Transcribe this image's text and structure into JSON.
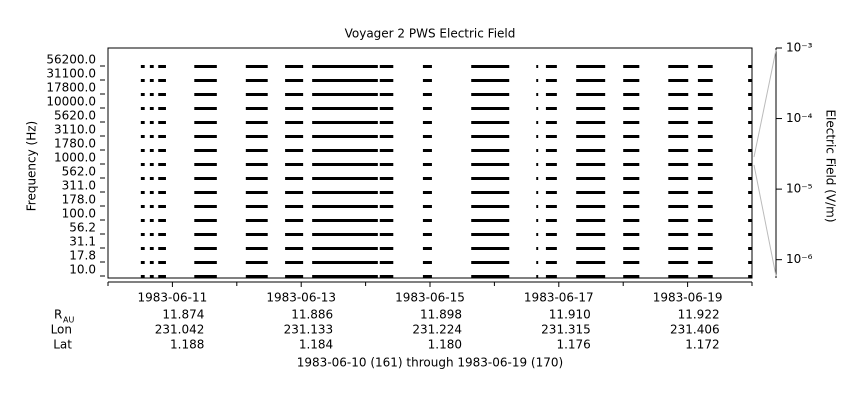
{
  "chart_data": {
    "type": "strip",
    "title": "Voyager 2 PWS Electric Field",
    "y_label": "Frequency (Hz)",
    "y2_label": "Electric Field (V/m)",
    "footer": "1983-06-10 (161) through 1983-06-19 (170)",
    "channels": [
      "56200.0",
      "31100.0",
      "17800.0",
      "10000.0",
      "5620.0",
      "3110.0",
      "1780.0",
      "1000.0",
      "562.0",
      "311.0",
      "178.0",
      "100.0",
      "56.2",
      "31.1",
      "17.8",
      "10.0"
    ],
    "color": "#000000",
    "xlim": [
      0,
      10
    ],
    "xticks": [
      {
        "value": 1,
        "label": "1983-06-11"
      },
      {
        "value": 3,
        "label": "1983-06-13"
      },
      {
        "value": 5,
        "label": "1983-06-15"
      },
      {
        "value": 7,
        "label": "1983-06-17"
      },
      {
        "value": 9,
        "label": "1983-06-19"
      }
    ],
    "xminor_ticks": [
      0,
      2,
      4,
      6,
      8,
      10
    ],
    "coverage": [
      [
        0.51,
        0.57
      ],
      [
        0.65,
        0.71
      ],
      [
        0.78,
        0.9
      ],
      [
        1.34,
        1.69
      ],
      [
        2.14,
        2.48
      ],
      [
        2.75,
        3.03
      ],
      [
        3.17,
        4.19
      ],
      [
        4.22,
        4.43
      ],
      [
        4.89,
        5.03
      ],
      [
        5.64,
        6.23
      ],
      [
        6.65,
        6.68
      ],
      [
        6.8,
        6.97
      ],
      [
        7.27,
        7.72
      ],
      [
        8.0,
        8.25
      ],
      [
        8.7,
        9.01
      ],
      [
        9.16,
        9.39
      ],
      [
        9.94,
        10.0
      ]
    ],
    "y2lim": [
      5.5e-07,
      0.001
    ],
    "y2_log": true,
    "y2ticks": [
      {
        "value": 0.001,
        "label": "10⁻³"
      },
      {
        "value": 0.0001,
        "label": "10⁻⁴"
      },
      {
        "value": 1e-05,
        "label": "10⁻⁵"
      },
      {
        "value": 1e-06,
        "label": "10⁻⁶"
      }
    ],
    "ephemeris": {
      "row_labels": [
        [
          "R",
          "AU"
        ],
        [
          "Lon",
          null
        ],
        [
          "Lat",
          null
        ]
      ],
      "rows": [
        [
          "11.874",
          "11.886",
          "11.898",
          "11.910",
          "11.922"
        ],
        [
          "231.042",
          "231.133",
          "231.224",
          "231.315",
          "231.406"
        ],
        [
          "1.188",
          "1.184",
          "1.180",
          "1.176",
          "1.172"
        ]
      ]
    }
  }
}
